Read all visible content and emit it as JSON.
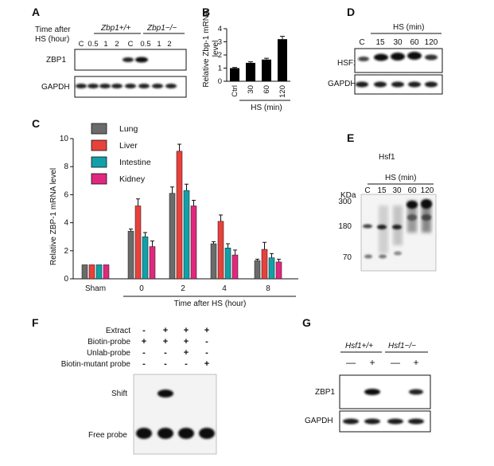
{
  "panels": {
    "A": "A",
    "B": "B",
    "C": "C",
    "D": "D",
    "E": "E",
    "F": "F",
    "G": "G"
  },
  "panel_a": {
    "time_label_1": "Time after",
    "time_label_2": "HS (hour)",
    "genotype_wt": "Zbp1+/+",
    "genotype_ko": "Zbp1−/−",
    "lanes": [
      "C",
      "0.5",
      "1",
      "2",
      "C",
      "0.5",
      "1",
      "2"
    ],
    "protein_1": "ZBP1",
    "protein_2": "GAPDH"
  },
  "panel_d": {
    "treatment": "HS (min)",
    "lanes": [
      "C",
      "15",
      "30",
      "60",
      "120"
    ],
    "protein_1": "HSF1",
    "protein_2": "GAPDH"
  },
  "panel_e": {
    "title": "Hsf1",
    "treatment": "HS (min)",
    "kda": "KDa",
    "lanes": [
      "C",
      "15",
      "30",
      "60",
      "120"
    ],
    "markers": [
      "300",
      "180",
      "70"
    ]
  },
  "panel_f": {
    "rows": [
      {
        "label": "Extract",
        "signs": [
          "-",
          "+",
          "+",
          "+"
        ]
      },
      {
        "label": "Biotin-probe",
        "signs": [
          "+",
          "+",
          "+",
          "-"
        ]
      },
      {
        "label": "Unlab-probe",
        "signs": [
          "-",
          "-",
          "+",
          "-"
        ]
      },
      {
        "label": "Biotin-mutant probe",
        "signs": [
          "-",
          "-",
          "-",
          "+"
        ]
      }
    ],
    "shift": "Shift",
    "free_probe": "Free probe"
  },
  "panel_g": {
    "genotype_wt": "Hsf1+/+",
    "genotype_ko": "Hsf1−/−",
    "signs": [
      "—",
      "+",
      "—",
      "+"
    ],
    "protein_1": "ZBP1",
    "protein_2": "GAPDH"
  },
  "chart_data": [
    {
      "id": "panel-b",
      "type": "bar",
      "categories": [
        "Ctrl",
        "30",
        "60",
        "120"
      ],
      "values": [
        1.0,
        1.4,
        1.65,
        3.2
      ],
      "errors": [
        0.05,
        0.08,
        0.1,
        0.22
      ],
      "ylabel": "Relative Zbp-1 mRNA level",
      "xlabel": "HS (min)",
      "ylim": [
        0,
        4
      ],
      "color": "#000000"
    },
    {
      "id": "panel-c",
      "type": "bar",
      "categories": [
        "Sham",
        "0",
        "2",
        "4",
        "8"
      ],
      "ylabel": "Relative ZBP-1 mRNA level",
      "xlabel": "Time after HS (hour)",
      "ylim": [
        0,
        10
      ],
      "yticks": [
        0,
        2,
        4,
        6,
        8,
        10
      ],
      "legend_position": "top-left",
      "series": [
        {
          "name": "Lung",
          "color": "#6b6b6b",
          "values": [
            1.0,
            3.4,
            6.1,
            2.5,
            1.3
          ],
          "errors": [
            0,
            0.15,
            0.45,
            0.15,
            0.1
          ]
        },
        {
          "name": "Liver",
          "color": "#e8413c",
          "values": [
            1.0,
            5.2,
            9.1,
            4.1,
            2.1
          ],
          "errors": [
            0,
            0.5,
            0.5,
            0.45,
            0.5
          ]
        },
        {
          "name": "Intestine",
          "color": "#12a0a8",
          "values": [
            1.0,
            3.0,
            6.3,
            2.2,
            1.5
          ],
          "errors": [
            0,
            0.3,
            0.45,
            0.3,
            0.3
          ]
        },
        {
          "name": "Kidney",
          "color": "#e0287e",
          "values": [
            1.0,
            2.3,
            5.2,
            1.7,
            1.2
          ],
          "errors": [
            0,
            0.4,
            0.4,
            0.35,
            0.2
          ]
        }
      ]
    }
  ]
}
